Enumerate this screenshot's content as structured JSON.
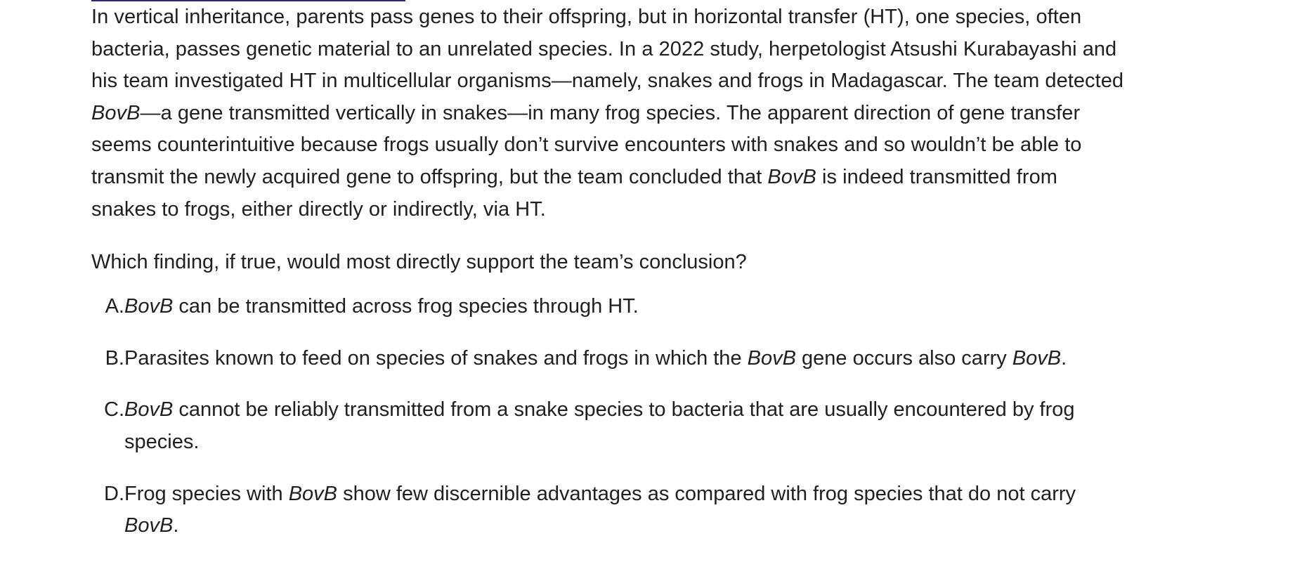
{
  "passage": {
    "lines": [
      {
        "segments": [
          {
            "text": "In vertical inheritance, parents pass genes to their offspring, but in horizontal transfer (HT), one species, often",
            "italic": false
          }
        ]
      },
      {
        "segments": [
          {
            "text": "bacteria, passes genetic material to an unrelated species. In a 2022 study, herpetologist Atsushi Kurabayashi and",
            "italic": false
          }
        ]
      },
      {
        "segments": [
          {
            "text": "his team investigated HT in multicellular organisms—namely, snakes and frogs in Madagascar. The team detected",
            "italic": false
          }
        ]
      },
      {
        "segments": [
          {
            "text": "BovB",
            "italic": true
          },
          {
            "text": "—a gene transmitted vertically in snakes—in many frog species. The apparent direction of gene transfer",
            "italic": false
          }
        ]
      },
      {
        "segments": [
          {
            "text": "seems counterintuitive because frogs usually don’t survive encounters with snakes and so wouldn’t be able to",
            "italic": false
          }
        ]
      },
      {
        "segments": [
          {
            "text": "transmit the newly acquired gene to offspring, but the team concluded that ",
            "italic": false
          },
          {
            "text": "BovB",
            "italic": true
          },
          {
            "text": " is indeed transmitted from",
            "italic": false
          }
        ]
      },
      {
        "segments": [
          {
            "text": "snakes to frogs, either directly or indirectly, via HT.",
            "italic": false
          }
        ]
      }
    ]
  },
  "question": "Which finding, if true, would most directly support the team’s conclusion?",
  "choices": [
    {
      "letter": "A.",
      "lines": [
        {
          "segments": [
            {
              "text": "BovB",
              "italic": true
            },
            {
              "text": " can be transmitted across frog species through HT.",
              "italic": false
            }
          ]
        }
      ]
    },
    {
      "letter": "B.",
      "lines": [
        {
          "segments": [
            {
              "text": "Parasites known to feed on species of snakes and frogs in which the ",
              "italic": false
            },
            {
              "text": "BovB",
              "italic": true
            },
            {
              "text": " gene occurs also carry ",
              "italic": false
            },
            {
              "text": "BovB",
              "italic": true
            },
            {
              "text": ".",
              "italic": false
            }
          ]
        }
      ]
    },
    {
      "letter": "C.",
      "lines": [
        {
          "segments": [
            {
              "text": "BovB",
              "italic": true
            },
            {
              "text": " cannot be reliably transmitted from a snake species to bacteria that are usually encountered by frog",
              "italic": false
            }
          ]
        },
        {
          "segments": [
            {
              "text": "species.",
              "italic": false
            }
          ]
        }
      ]
    },
    {
      "letter": "D.",
      "lines": [
        {
          "segments": [
            {
              "text": "Frog species with ",
              "italic": false
            },
            {
              "text": "BovB",
              "italic": true
            },
            {
              "text": " show few discernible advantages as compared with frog species that do not carry",
              "italic": false
            }
          ]
        },
        {
          "segments": [
            {
              "text": "BovB",
              "italic": true
            },
            {
              "text": ".",
              "italic": false
            }
          ]
        }
      ]
    }
  ]
}
